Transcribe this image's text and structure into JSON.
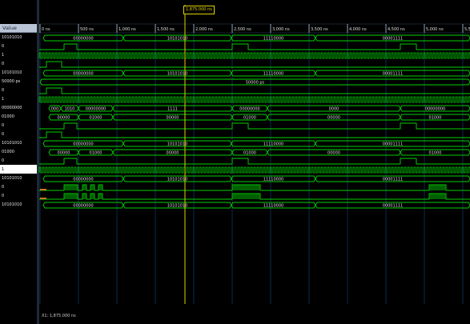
{
  "header": {
    "value_label": "Value"
  },
  "cursor": {
    "label": "1,875.000 ns"
  },
  "status": {
    "text": "X1: 1,875.000 ns"
  },
  "timeline": {
    "ticks": [
      "0 ns",
      "500 ns",
      "1,000 ns",
      "1,500 ns",
      "2,000 ns",
      "2,500 ns",
      "3,000 ns",
      "3,500 ns",
      "4,000 ns",
      "4,500 ns",
      "5,000 ns",
      "5,5"
    ]
  },
  "rows": [
    {
      "value": "10101010",
      "type": "bus",
      "segments": [
        {
          "t": "00000000"
        },
        {
          "t": "10101010"
        },
        {
          "t": "11110000"
        },
        {
          "t": "00001111"
        }
      ]
    },
    {
      "value": "0",
      "type": "bit"
    },
    {
      "value": "1",
      "type": "clock"
    },
    {
      "value": "0",
      "type": "bit"
    },
    {
      "value": "10101010",
      "type": "bus",
      "segments": [
        {
          "t": "00000000"
        },
        {
          "t": "10101010"
        },
        {
          "t": "11110000"
        },
        {
          "t": "00001111"
        }
      ]
    },
    {
      "value": "50000 ps",
      "type": "bus",
      "segments": [
        {
          "t": "50000 ps"
        }
      ]
    },
    {
      "value": "0",
      "type": "bit"
    },
    {
      "value": "1",
      "type": "clock"
    },
    {
      "value": "00000000",
      "type": "bus",
      "segments": [
        {
          "t": "000"
        },
        {
          "t": "1010"
        },
        {
          "t": "00000000"
        },
        {
          "t": "1111"
        },
        {
          "t": "00000000"
        },
        {
          "t": "0000"
        },
        {
          "t": "00000000"
        }
      ]
    },
    {
      "value": "01000",
      "type": "bus",
      "segments": [
        {
          "t": "00000"
        },
        {
          "t": "01000"
        },
        {
          "t": "00000"
        },
        {
          "t": "01000"
        },
        {
          "t": "00000"
        },
        {
          "t": "01000"
        }
      ]
    },
    {
      "value": "0",
      "type": "bit"
    },
    {
      "value": "0",
      "type": "bit"
    },
    {
      "value": "10101010",
      "type": "bus",
      "segments": [
        {
          "t": "00000000"
        },
        {
          "t": "10101010"
        },
        {
          "t": "11110000"
        },
        {
          "t": "00001111"
        }
      ]
    },
    {
      "value": "01000",
      "type": "bus",
      "segments": [
        {
          "t": "00000"
        },
        {
          "t": "01000"
        },
        {
          "t": "00000"
        },
        {
          "t": "01000"
        },
        {
          "t": "00000"
        },
        {
          "t": "01000"
        }
      ]
    },
    {
      "value": "0",
      "type": "bit"
    },
    {
      "value": "1",
      "type": "clock"
    },
    {
      "value": "10101010",
      "type": "bus",
      "segments": [
        {
          "t": "00000000"
        },
        {
          "t": "10101010"
        },
        {
          "t": "11110000"
        },
        {
          "t": "00001111"
        }
      ]
    },
    {
      "value": "0",
      "type": "bit"
    },
    {
      "value": "0",
      "type": "bit"
    },
    {
      "value": "10101010",
      "type": "bus",
      "segments": [
        {
          "t": "00000000"
        },
        {
          "t": "10101010"
        },
        {
          "t": "11110000"
        },
        {
          "t": "00001111"
        }
      ]
    }
  ],
  "colors": {
    "wave": "#00d400",
    "grid": "#0c2d4a",
    "cursor": "#e1d200",
    "text": "#dfdfdf"
  }
}
